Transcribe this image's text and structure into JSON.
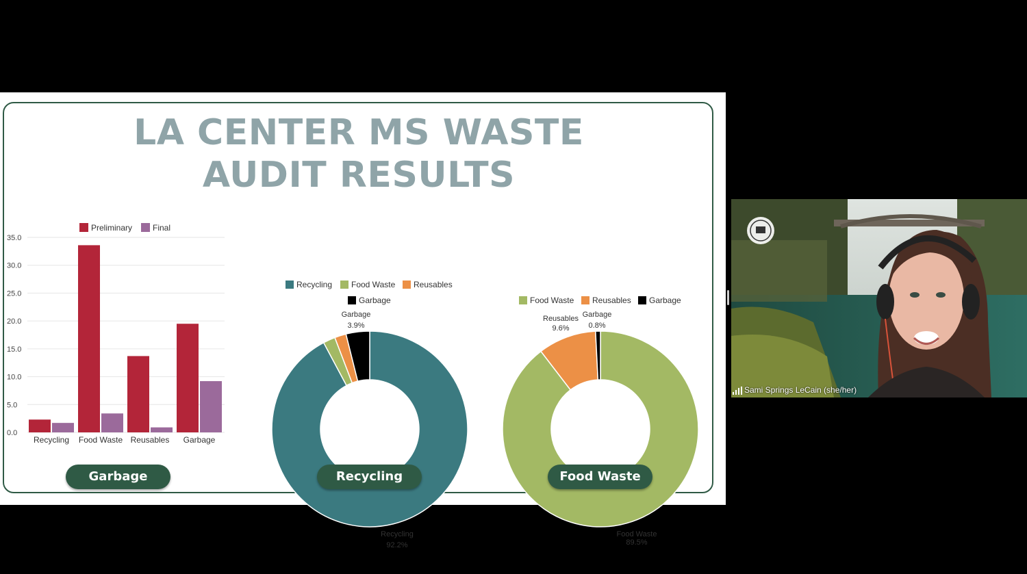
{
  "slide": {
    "title_line1": "LA CENTER MS WASTE",
    "title_line2": "AUDIT RESULTS",
    "buttons": [
      "Garbage",
      "Recycling",
      "Food Waste"
    ]
  },
  "colors": {
    "preliminary": "#b32539",
    "final": "#9b6a9b",
    "recycling": "#3b7a80",
    "food_waste": "#a3b964",
    "reusables": "#ec9046",
    "garbage": "#000000",
    "button_green": "#2f5a45"
  },
  "chart_data": [
    {
      "type": "bar",
      "categories": [
        "Recycling",
        "Food Waste",
        "Reusables",
        "Garbage"
      ],
      "series": [
        {
          "name": "Preliminary",
          "values": [
            2.3,
            33.6,
            13.7,
            19.5
          ]
        },
        {
          "name": "Final",
          "values": [
            1.7,
            3.4,
            0.9,
            9.2
          ]
        }
      ],
      "ylim": [
        0,
        35
      ],
      "yticks": [
        "0.0",
        "5.0",
        "10.0",
        "15.0",
        "20.0",
        "25.0",
        "30.0",
        "35.0"
      ],
      "legend": "top",
      "grid": true
    },
    {
      "type": "pie",
      "legend": [
        "Recycling",
        "Food Waste",
        "Reusables",
        "Garbage"
      ],
      "slices": [
        {
          "name": "Recycling",
          "value": 92.2
        },
        {
          "name": "Food Waste",
          "value": 2.0
        },
        {
          "name": "Reusables",
          "value": 1.9
        },
        {
          "name": "Garbage",
          "value": 3.9
        }
      ],
      "labels": [
        {
          "name": "Garbage",
          "pct": "3.9%"
        },
        {
          "name": "Recycling",
          "pct": "92.2%"
        }
      ]
    },
    {
      "type": "pie",
      "legend": [
        "Food Waste",
        "Reusables",
        "Garbage"
      ],
      "slices": [
        {
          "name": "Food Waste",
          "value": 89.5
        },
        {
          "name": "Reusables",
          "value": 9.6
        },
        {
          "name": "Garbage",
          "value": 0.8
        }
      ],
      "labels": [
        {
          "name": "Reusables",
          "pct": "9.6%"
        },
        {
          "name": "Garbage",
          "pct": "0.8%"
        },
        {
          "name": "Food Waste",
          "pct": "89.5%"
        }
      ]
    }
  ],
  "video": {
    "speaker_name": "Sami Springs LeCain (she/her)"
  }
}
